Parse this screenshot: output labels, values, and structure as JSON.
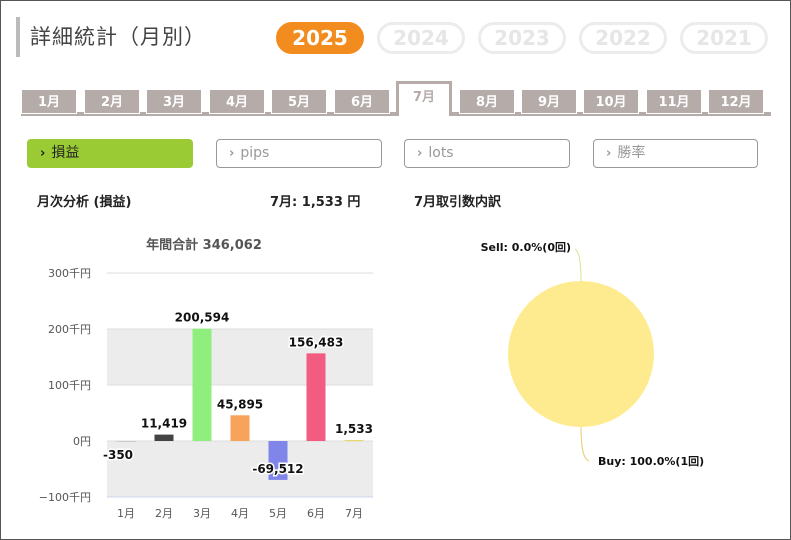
{
  "page_title": "詳細統計（月別）",
  "years": [
    {
      "label": "2025",
      "active": true
    },
    {
      "label": "2024",
      "active": false
    },
    {
      "label": "2023",
      "active": false
    },
    {
      "label": "2022",
      "active": false
    },
    {
      "label": "2021",
      "active": false
    }
  ],
  "months": [
    {
      "label": "1月",
      "active": false
    },
    {
      "label": "2月",
      "active": false
    },
    {
      "label": "3月",
      "active": false
    },
    {
      "label": "4月",
      "active": false
    },
    {
      "label": "5月",
      "active": false
    },
    {
      "label": "6月",
      "active": false
    },
    {
      "label": "7月",
      "active": true
    },
    {
      "label": "8月",
      "active": false
    },
    {
      "label": "9月",
      "active": false
    },
    {
      "label": "10月",
      "active": false
    },
    {
      "label": "11月",
      "active": false
    },
    {
      "label": "12月",
      "active": false
    }
  ],
  "metric_tabs": [
    {
      "label": "損益",
      "active": true
    },
    {
      "label": "pips",
      "active": false
    },
    {
      "label": "lots",
      "active": false
    },
    {
      "label": "勝率",
      "active": false
    }
  ],
  "chev_glyph": "›",
  "monthly_heading": "月次分析 (損益)",
  "current_month_summary": "7月:  1,533 円",
  "trade_breakdown_heading": "7月取引数内訳",
  "chart_data": [
    {
      "type": "bar",
      "title": "年間合計 346,062",
      "categories": [
        "1月",
        "2月",
        "3月",
        "4月",
        "5月",
        "6月",
        "7月"
      ],
      "values": [
        -350,
        11419,
        200594,
        45895,
        -69512,
        156483,
        1533
      ],
      "value_labels": [
        "-350",
        "11,419",
        "200,594",
        "45,895",
        "-69,512",
        "156,483",
        "1,533"
      ],
      "colors": [
        "#cccccc",
        "#444444",
        "#90ee7e",
        "#f7a35c",
        "#8085e9",
        "#f15c80",
        "#e4d354"
      ],
      "ylim": [
        -100000,
        300000
      ],
      "yticks": [
        300000,
        200000,
        100000,
        0,
        -100000
      ],
      "ytick_labels": [
        "300千円",
        "200千円",
        "100千円",
        "0円",
        "−100千円"
      ],
      "grid": true,
      "legend": "none"
    },
    {
      "type": "pie",
      "categories": [
        "Sell",
        "Buy"
      ],
      "values": [
        0,
        100
      ],
      "slice_labels": [
        "Sell: 0.0%(0回)",
        "Buy: 100.0%(1回)"
      ],
      "colors": [
        "#9acb34",
        "#ffeb8f"
      ]
    }
  ]
}
